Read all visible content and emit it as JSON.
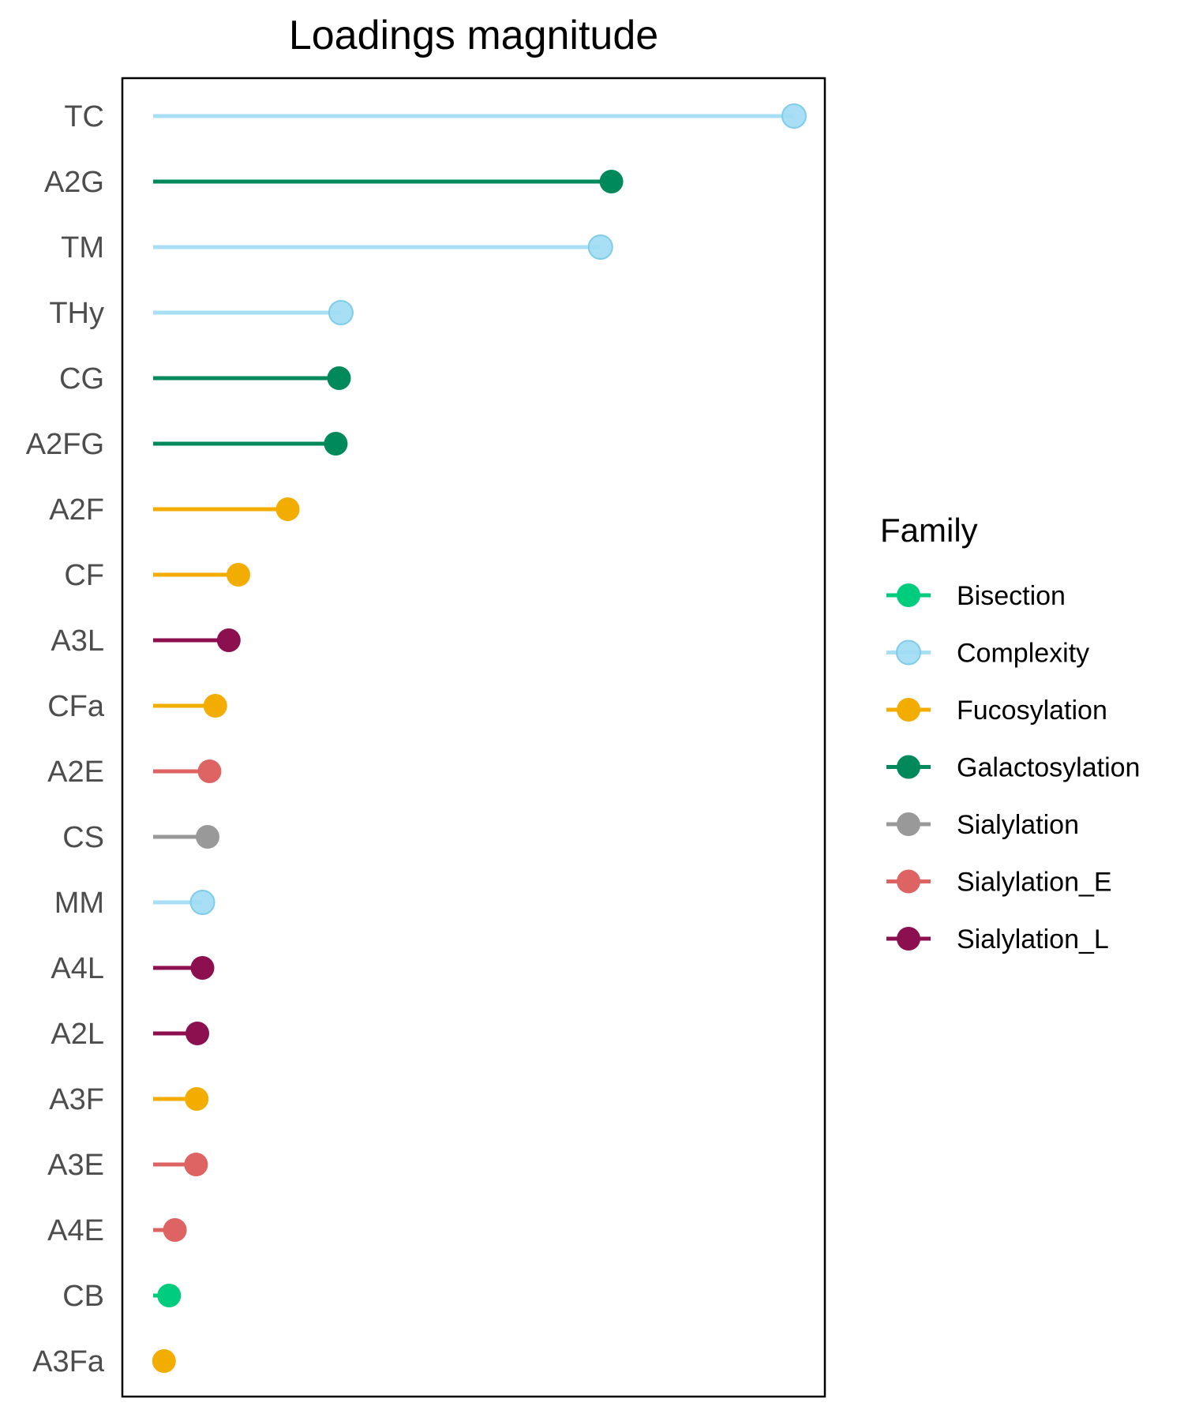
{
  "chart_data": {
    "type": "lollipop",
    "title": "Loadings magnitude",
    "xlabel": "",
    "ylabel": "",
    "x_axis_shown": false,
    "grid": false,
    "legend": {
      "title": "Family",
      "placement": "right",
      "entries": [
        {
          "name": "Bisection",
          "color": "#00CC7E"
        },
        {
          "name": "Complexity",
          "color": "#9FDBF4"
        },
        {
          "name": "Fucosylation",
          "color": "#F2AD00"
        },
        {
          "name": "Galactosylation",
          "color": "#008A5C"
        },
        {
          "name": "Sialylation",
          "color": "#999999"
        },
        {
          "name": "Sialylation_E",
          "color": "#DE6464"
        },
        {
          "name": "Sialylation_L",
          "color": "#8C0F4F"
        }
      ]
    },
    "xlim": [
      0,
      1.06
    ],
    "points": [
      {
        "label": "TC",
        "value": 1.0,
        "family": "Complexity"
      },
      {
        "label": "A2G",
        "value": 0.715,
        "family": "Galactosylation"
      },
      {
        "label": "TM",
        "value": 0.698,
        "family": "Complexity"
      },
      {
        "label": "THy",
        "value": 0.293,
        "family": "Complexity"
      },
      {
        "label": "CG",
        "value": 0.29,
        "family": "Galactosylation"
      },
      {
        "label": "A2FG",
        "value": 0.285,
        "family": "Galactosylation"
      },
      {
        "label": "A2F",
        "value": 0.21,
        "family": "Fucosylation"
      },
      {
        "label": "CF",
        "value": 0.133,
        "family": "Fucosylation"
      },
      {
        "label": "A3L",
        "value": 0.118,
        "family": "Sialylation_L"
      },
      {
        "label": "CFa",
        "value": 0.097,
        "family": "Fucosylation"
      },
      {
        "label": "A2E",
        "value": 0.088,
        "family": "Sialylation_E"
      },
      {
        "label": "CS",
        "value": 0.085,
        "family": "Sialylation"
      },
      {
        "label": "MM",
        "value": 0.077,
        "family": "Complexity"
      },
      {
        "label": "A4L",
        "value": 0.077,
        "family": "Sialylation_L"
      },
      {
        "label": "A2L",
        "value": 0.069,
        "family": "Sialylation_L"
      },
      {
        "label": "A3F",
        "value": 0.068,
        "family": "Fucosylation"
      },
      {
        "label": "A3E",
        "value": 0.067,
        "family": "Sialylation_E"
      },
      {
        "label": "A4E",
        "value": 0.034,
        "family": "Sialylation_E"
      },
      {
        "label": "CB",
        "value": 0.025,
        "family": "Bisection"
      },
      {
        "label": "A3Fa",
        "value": 0.017,
        "family": "Fucosylation"
      }
    ]
  }
}
